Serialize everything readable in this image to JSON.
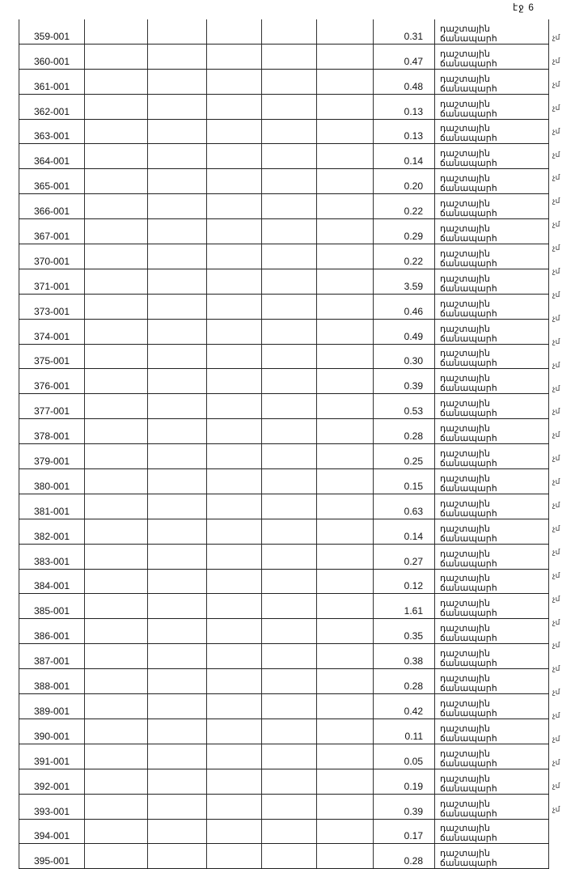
{
  "page_label": "էջ 6",
  "row_type_line1": "դաշտային",
  "row_type_line2": "ճանապարհ",
  "margin_mark": "չմ",
  "rows": [
    {
      "id": "359-001",
      "value": "0.31"
    },
    {
      "id": "360-001",
      "value": "0.47"
    },
    {
      "id": "361-001",
      "value": "0.48"
    },
    {
      "id": "362-001",
      "value": "0.13"
    },
    {
      "id": "363-001",
      "value": "0.13"
    },
    {
      "id": "364-001",
      "value": "0.14"
    },
    {
      "id": "365-001",
      "value": "0.20"
    },
    {
      "id": "366-001",
      "value": "0.22"
    },
    {
      "id": "367-001",
      "value": "0.29"
    },
    {
      "id": "370-001",
      "value": "0.22"
    },
    {
      "id": "371-001",
      "value": "3.59"
    },
    {
      "id": "373-001",
      "value": "0.46"
    },
    {
      "id": "374-001",
      "value": "0.49"
    },
    {
      "id": "375-001",
      "value": "0.30"
    },
    {
      "id": "376-001",
      "value": "0.39"
    },
    {
      "id": "377-001",
      "value": "0.53"
    },
    {
      "id": "378-001",
      "value": "0.28"
    },
    {
      "id": "379-001",
      "value": "0.25"
    },
    {
      "id": "380-001",
      "value": "0.15"
    },
    {
      "id": "381-001",
      "value": "0.63"
    },
    {
      "id": "382-001",
      "value": "0.14"
    },
    {
      "id": "383-001",
      "value": "0.27"
    },
    {
      "id": "384-001",
      "value": "0.12"
    },
    {
      "id": "385-001",
      "value": "1.61"
    },
    {
      "id": "386-001",
      "value": "0.35"
    },
    {
      "id": "387-001",
      "value": "0.38"
    },
    {
      "id": "388-001",
      "value": "0.28"
    },
    {
      "id": "389-001",
      "value": "0.42"
    },
    {
      "id": "390-001",
      "value": "0.11"
    },
    {
      "id": "391-001",
      "value": "0.05"
    },
    {
      "id": "392-001",
      "value": "0.19"
    },
    {
      "id": "393-001",
      "value": "0.39"
    },
    {
      "id": "394-001",
      "value": "0.17"
    },
    {
      "id": "395-001",
      "value": "0.28"
    }
  ]
}
